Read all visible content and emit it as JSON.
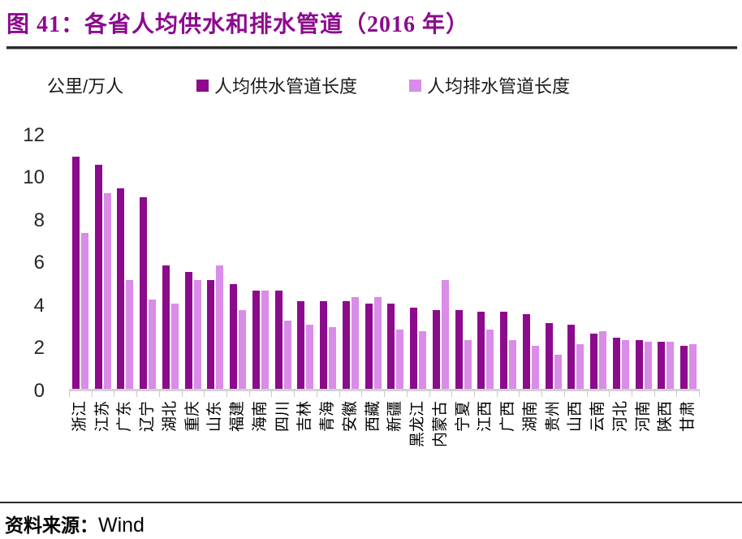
{
  "title": "图 41：各省人均供水和排水管道（2016 年）",
  "source": {
    "label": "资料来源：",
    "value": "Wind"
  },
  "colors": {
    "accent_title": "#8C0A8E",
    "series_supply": "#8C0A8C",
    "series_drainage": "#D98CE8",
    "axis_gray": "#C9C9C9"
  },
  "chart_data": {
    "type": "bar",
    "title": "各省人均供水和排水管道（2016 年）",
    "unit_label": "公里/万人",
    "ylabel": "公里/万人",
    "xlabel": "",
    "ylim": [
      0,
      12
    ],
    "yticks": [
      0,
      2,
      4,
      6,
      8,
      10,
      12
    ],
    "grid": false,
    "legend_position": "top",
    "categories": [
      "浙江",
      "江苏",
      "广东",
      "辽宁",
      "湖北",
      "重庆",
      "山东",
      "福建",
      "海南",
      "四川",
      "吉林",
      "青海",
      "安徽",
      "西藏",
      "新疆",
      "黑龙江",
      "内蒙古",
      "宁夏",
      "江西",
      "广西",
      "湖南",
      "贵州",
      "山西",
      "云南",
      "河北",
      "河南",
      "陕西",
      "甘肃"
    ],
    "series": [
      {
        "key": "supply",
        "name": "人均供水管道长度",
        "color": "#8C0A8C",
        "values": [
          10.9,
          10.5,
          9.4,
          9.0,
          5.8,
          5.5,
          5.1,
          4.9,
          4.6,
          4.6,
          4.1,
          4.1,
          4.1,
          4.0,
          4.0,
          3.8,
          3.7,
          3.7,
          3.6,
          3.6,
          3.5,
          3.1,
          3.0,
          2.6,
          2.4,
          2.3,
          2.2,
          2.0
        ]
      },
      {
        "key": "drainage",
        "name": "人均排水管道长度",
        "color": "#D98CE8",
        "values": [
          7.3,
          9.2,
          5.1,
          4.2,
          4.0,
          5.1,
          5.8,
          3.7,
          4.6,
          3.2,
          3.0,
          2.9,
          4.3,
          4.3,
          2.8,
          2.7,
          5.1,
          2.3,
          2.8,
          2.3,
          2.0,
          1.6,
          2.1,
          2.7,
          2.3,
          2.2,
          2.2,
          2.1
        ]
      }
    ]
  }
}
